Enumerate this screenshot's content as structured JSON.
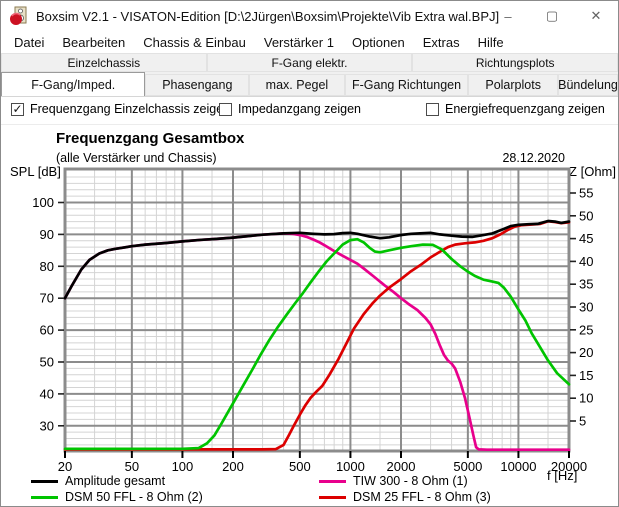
{
  "window": {
    "title": "Boxsim V2.1 - VISATON-Edition [D:\\2Jürgen\\Boxsim\\Projekte\\Vib Extra wal.BPJ]",
    "controls": [
      "minimize",
      "maximize",
      "close"
    ]
  },
  "menu": {
    "items": [
      "Datei",
      "Bearbeiten",
      "Chassis & Einbau",
      "Verstärker 1",
      "Optionen",
      "Extras",
      "Hilfe"
    ]
  },
  "tabs_row1": [
    "Einzelchassis",
    "F-Gang elektr.",
    "Richtungsplots"
  ],
  "tabs_row2": [
    {
      "label": "F-Gang/Imped.",
      "active": true
    },
    {
      "label": "Phasengang",
      "active": false
    },
    {
      "label": "max. Pegel",
      "active": false
    },
    {
      "label": "F-Gang Richtungen",
      "active": false
    },
    {
      "label": "Polarplots",
      "active": false
    },
    {
      "label": "Bündelung",
      "active": false
    }
  ],
  "checkboxes": [
    {
      "label": "Frequenzgang Einzelchassis zeigen",
      "checked": true
    },
    {
      "label": "Impedanzgang zeigen",
      "checked": false
    },
    {
      "label": "Energiefrequenzgang zeigen",
      "checked": false
    }
  ],
  "chart_data": {
    "type": "line",
    "title": "Frequenzgang Gesamtbox",
    "subtitle": "(alle Verstärker und Chassis)",
    "date": "28.12.2020",
    "grid": true,
    "legend_position": "bottom",
    "x_axis": {
      "label": "f [Hz]",
      "scale": "log",
      "min": 20,
      "max": 20000,
      "major_ticks": [
        20,
        50,
        100,
        200,
        500,
        1000,
        2000,
        5000,
        10000,
        20000
      ],
      "minor_ticks": [
        30,
        40,
        60,
        70,
        80,
        90,
        150,
        300,
        400,
        600,
        700,
        800,
        900,
        1500,
        3000,
        4000,
        6000,
        7000,
        8000,
        9000,
        15000
      ]
    },
    "y_left": {
      "label": "SPL [dB]",
      "unit": "dB",
      "major_ticks": [
        100,
        90,
        80,
        70,
        60,
        50,
        40,
        30
      ],
      "minor_step": 2,
      "view_min": 22.1,
      "view_max": 110.5
    },
    "y_right": {
      "label": "Z [Ohm]",
      "unit": "Ohm",
      "ticks": [
        55,
        50,
        45,
        40,
        35,
        30,
        25,
        20,
        15,
        10,
        5
      ]
    },
    "colors": {
      "grid_major": "#8c8c8c",
      "grid_minor": "#d4d4d4",
      "axis": "#000000"
    },
    "series": [
      {
        "name": "Amplitude gesamt",
        "color": "#000000",
        "points": [
          [
            20,
            70
          ],
          [
            22,
            74
          ],
          [
            25,
            79
          ],
          [
            28,
            82
          ],
          [
            32,
            84
          ],
          [
            36,
            85
          ],
          [
            40,
            85.5
          ],
          [
            50,
            86.3
          ],
          [
            60,
            86.8
          ],
          [
            80,
            87.3
          ],
          [
            100,
            87.8
          ],
          [
            130,
            88.3
          ],
          [
            160,
            88.6
          ],
          [
            200,
            89
          ],
          [
            250,
            89.5
          ],
          [
            300,
            89.9
          ],
          [
            400,
            90.3
          ],
          [
            500,
            90.5
          ],
          [
            600,
            90.2
          ],
          [
            700,
            90
          ],
          [
            800,
            90.1
          ],
          [
            900,
            90.4
          ],
          [
            1000,
            90.5
          ],
          [
            1100,
            90.2
          ],
          [
            1300,
            89.3
          ],
          [
            1500,
            88.8
          ],
          [
            1700,
            89.1
          ],
          [
            2000,
            89.8
          ],
          [
            2300,
            90.2
          ],
          [
            2600,
            90.3
          ],
          [
            3000,
            90.5
          ],
          [
            3400,
            90
          ],
          [
            4000,
            89.6
          ],
          [
            4600,
            89.3
          ],
          [
            5300,
            89.2
          ],
          [
            6000,
            89.7
          ],
          [
            7000,
            90.3
          ],
          [
            8000,
            91.5
          ],
          [
            9000,
            92.6
          ],
          [
            10000,
            93
          ],
          [
            11500,
            93.2
          ],
          [
            13000,
            93.3
          ],
          [
            15000,
            94.2
          ],
          [
            16500,
            94
          ],
          [
            18000,
            93.6
          ],
          [
            20000,
            94
          ]
        ]
      },
      {
        "name": "TIW 300 - 8 Ohm (1)",
        "color": "#e8008c",
        "points": [
          [
            20,
            70
          ],
          [
            22,
            74
          ],
          [
            25,
            79
          ],
          [
            28,
            82
          ],
          [
            32,
            84
          ],
          [
            36,
            85
          ],
          [
            40,
            85.5
          ],
          [
            50,
            86.3
          ],
          [
            60,
            86.8
          ],
          [
            80,
            87.3
          ],
          [
            100,
            87.8
          ],
          [
            130,
            88.3
          ],
          [
            160,
            88.6
          ],
          [
            200,
            89
          ],
          [
            250,
            89.5
          ],
          [
            300,
            89.9
          ],
          [
            400,
            90.3
          ],
          [
            450,
            90.2
          ],
          [
            500,
            89.8
          ],
          [
            550,
            89.2
          ],
          [
            600,
            88.4
          ],
          [
            650,
            87.6
          ],
          [
            700,
            86.6
          ],
          [
            800,
            84.8
          ],
          [
            900,
            83.3
          ],
          [
            1000,
            82
          ],
          [
            1100,
            80.8
          ],
          [
            1200,
            79.3
          ],
          [
            1400,
            76.5
          ],
          [
            1600,
            74
          ],
          [
            1800,
            72
          ],
          [
            2000,
            70
          ],
          [
            2200,
            68.3
          ],
          [
            2500,
            66.3
          ],
          [
            2800,
            63.8
          ],
          [
            3000,
            61.8
          ],
          [
            3200,
            58.8
          ],
          [
            3400,
            55.3
          ],
          [
            3600,
            52.3
          ],
          [
            3800,
            50.5
          ],
          [
            4000,
            49.5
          ],
          [
            4200,
            48
          ],
          [
            4500,
            43.8
          ],
          [
            4800,
            38.8
          ],
          [
            5100,
            32.8
          ],
          [
            5400,
            26.8
          ],
          [
            5600,
            23.3
          ],
          [
            5800,
            22.6
          ],
          [
            6500,
            22.5
          ],
          [
            8000,
            22.5
          ],
          [
            12000,
            22.5
          ],
          [
            20000,
            22.5
          ]
        ]
      },
      {
        "name": "DSM 50 FFL - 8 Ohm (2)",
        "color": "#00c400",
        "points": [
          [
            20,
            22.8
          ],
          [
            60,
            22.8
          ],
          [
            100,
            22.8
          ],
          [
            125,
            23
          ],
          [
            140,
            24.5
          ],
          [
            155,
            27
          ],
          [
            170,
            30.5
          ],
          [
            190,
            35
          ],
          [
            210,
            39
          ],
          [
            235,
            43.5
          ],
          [
            260,
            47.5
          ],
          [
            290,
            52
          ],
          [
            330,
            57
          ],
          [
            370,
            61
          ],
          [
            420,
            65
          ],
          [
            470,
            68.5
          ],
          [
            520,
            71.5
          ],
          [
            580,
            75
          ],
          [
            650,
            78.5
          ],
          [
            720,
            81.5
          ],
          [
            800,
            84
          ],
          [
            900,
            86.8
          ],
          [
            1000,
            88.2
          ],
          [
            1100,
            88.5
          ],
          [
            1200,
            87.5
          ],
          [
            1300,
            85.8
          ],
          [
            1400,
            84.6
          ],
          [
            1500,
            84.4
          ],
          [
            1700,
            85
          ],
          [
            2000,
            85.8
          ],
          [
            2300,
            86.3
          ],
          [
            2700,
            86.8
          ],
          [
            3100,
            86.7
          ],
          [
            3500,
            85.3
          ],
          [
            4000,
            82.3
          ],
          [
            4500,
            80
          ],
          [
            5000,
            78.3
          ],
          [
            5500,
            77
          ],
          [
            6200,
            75.8
          ],
          [
            7000,
            75.2
          ],
          [
            7600,
            74.8
          ],
          [
            8200,
            73.3
          ],
          [
            9000,
            70.5
          ],
          [
            10000,
            66.5
          ],
          [
            11000,
            63
          ],
          [
            12000,
            59
          ],
          [
            13500,
            54.5
          ],
          [
            15000,
            50.5
          ],
          [
            17000,
            46.5
          ],
          [
            20000,
            43
          ]
        ]
      },
      {
        "name": "DSM 25 FFL - 8 Ohm (3)",
        "color": "#dc0000",
        "points": [
          [
            20,
            22.6
          ],
          [
            100,
            22.6
          ],
          [
            200,
            22.6
          ],
          [
            300,
            22.6
          ],
          [
            360,
            22.7
          ],
          [
            400,
            24
          ],
          [
            430,
            27
          ],
          [
            460,
            30
          ],
          [
            500,
            33.5
          ],
          [
            540,
            36.5
          ],
          [
            580,
            38.8
          ],
          [
            630,
            40.8
          ],
          [
            680,
            42.5
          ],
          [
            750,
            46
          ],
          [
            850,
            51
          ],
          [
            950,
            56
          ],
          [
            1050,
            60.5
          ],
          [
            1200,
            65
          ],
          [
            1350,
            68.3
          ],
          [
            1500,
            70.8
          ],
          [
            1700,
            73.3
          ],
          [
            2000,
            76
          ],
          [
            2300,
            78.5
          ],
          [
            2600,
            80.3
          ],
          [
            3000,
            82.8
          ],
          [
            3400,
            84.5
          ],
          [
            3800,
            86
          ],
          [
            4200,
            86.8
          ],
          [
            4800,
            87.2
          ],
          [
            5500,
            87.5
          ],
          [
            6200,
            88
          ],
          [
            7000,
            88.8
          ],
          [
            7800,
            90
          ],
          [
            8600,
            91.3
          ],
          [
            9500,
            92.4
          ],
          [
            10500,
            92.9
          ],
          [
            12000,
            93.1
          ],
          [
            13500,
            93.3
          ],
          [
            15000,
            94.1
          ],
          [
            16500,
            93.9
          ],
          [
            18000,
            93.5
          ],
          [
            20000,
            93.8
          ]
        ]
      }
    ]
  }
}
